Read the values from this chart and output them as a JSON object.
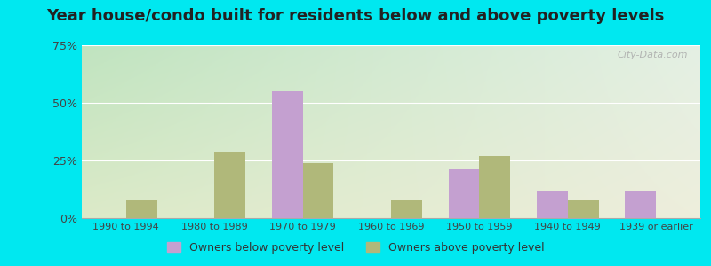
{
  "title": "Year house/condo built for residents below and above poverty levels",
  "categories": [
    "1990 to 1994",
    "1980 to 1989",
    "1970 to 1979",
    "1960 to 1969",
    "1950 to 1959",
    "1940 to 1949",
    "1939 or earlier"
  ],
  "below_poverty": [
    0,
    0,
    55,
    0,
    21,
    12,
    12
  ],
  "above_poverty": [
    8,
    29,
    24,
    8,
    27,
    8,
    0
  ],
  "below_color": "#c4a0d0",
  "above_color": "#b0b87a",
  "ylim": [
    0,
    75
  ],
  "yticks": [
    0,
    25,
    50,
    75
  ],
  "ytick_labels": [
    "0%",
    "25%",
    "50%",
    "75%"
  ],
  "legend_below": "Owners below poverty level",
  "legend_above": "Owners above poverty level",
  "bar_width": 0.35,
  "outer_bg": "#00e8f0",
  "title_fontsize": 13,
  "watermark": "City-Data.com"
}
